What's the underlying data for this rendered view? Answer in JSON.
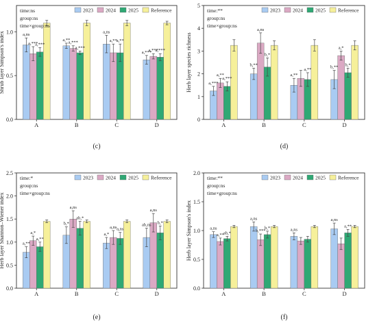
{
  "legend_labels": [
    "2023",
    "2024",
    "2025",
    "Reference"
  ],
  "colors": {
    "2023": "#a9cbf2",
    "2024": "#dba9c4",
    "2025": "#2fa874",
    "Reference": "#f6f09a",
    "axis": "#333333",
    "error": "#444444"
  },
  "chart_data": [
    {
      "type": "bar",
      "panel_label": "(c)",
      "ylabel": "Shrub layer Simpson's index",
      "categories": [
        "A",
        "B",
        "C",
        "D"
      ],
      "series": [
        {
          "name": "2023",
          "values": [
            0.85,
            0.84,
            0.86,
            0.68
          ],
          "errors": [
            0.08,
            0.03,
            0.1,
            0.05
          ]
        },
        {
          "name": "2024",
          "values": [
            0.75,
            0.81,
            0.76,
            0.72
          ],
          "errors": [
            0.08,
            0.03,
            0.1,
            0.03
          ]
        },
        {
          "name": "2025",
          "values": [
            0.77,
            0.76,
            0.76,
            0.71
          ],
          "errors": [
            0.05,
            0.02,
            0.1,
            0.04
          ]
        },
        {
          "name": "Reference",
          "values": [
            1.1,
            1.1,
            1.1,
            1.1
          ],
          "errors": [
            0.03,
            0.03,
            0.03,
            0.02
          ]
        }
      ],
      "annotations": [
        {
          "category": "A",
          "series": "2023",
          "text": "a,ns"
        },
        {
          "category": "A",
          "series": "2024",
          "text": "a,***"
        },
        {
          "category": "A",
          "series": "2025",
          "text": "a,***"
        },
        {
          "category": "B",
          "series": "2023",
          "text": "a,**"
        },
        {
          "category": "B",
          "series": "2024",
          "text": "a,***"
        },
        {
          "category": "B",
          "series": "2025",
          "text": "a,***"
        },
        {
          "category": "C",
          "series": "2023",
          "text": "a,ns"
        },
        {
          "category": "C",
          "series": "2024",
          "text": "a,**"
        },
        {
          "category": "C",
          "series": "2025",
          "text": "a,**"
        },
        {
          "category": "D",
          "series": "2023",
          "text": "a,***"
        },
        {
          "category": "D",
          "series": "2024",
          "text": "a,***"
        },
        {
          "category": "D",
          "series": "2025",
          "text": "a,***"
        }
      ],
      "stats": [
        "time:ns",
        "group:ns",
        "time×group:ns"
      ],
      "ylim": [
        0.0,
        1.3
      ],
      "yticks": [
        "0.0",
        "0.5",
        "1.0"
      ],
      "ytick_values": [
        0,
        0.5,
        1.0
      ],
      "legend": "top"
    },
    {
      "type": "bar",
      "panel_label": "(d)",
      "ylabel": "Herb layer species richness",
      "categories": [
        "A",
        "B",
        "C",
        "D"
      ],
      "series": [
        {
          "name": "2023",
          "values": [
            1.25,
            2.0,
            1.5,
            1.75
          ],
          "errors": [
            0.2,
            0.25,
            0.3,
            0.4
          ]
        },
        {
          "name": "2024",
          "values": [
            1.6,
            3.35,
            1.8,
            2.8
          ],
          "errors": [
            0.2,
            0.45,
            0.35,
            0.2
          ]
        },
        {
          "name": "2025",
          "values": [
            1.45,
            2.3,
            1.75,
            2.05
          ],
          "errors": [
            0.2,
            0.4,
            0.3,
            0.2
          ]
        },
        {
          "name": "Reference",
          "values": [
            3.25,
            3.25,
            3.25,
            3.25
          ],
          "errors": [
            0.25,
            0.2,
            0.25,
            0.2
          ]
        }
      ],
      "annotations": [
        {
          "category": "A",
          "series": "2023",
          "text": "a,***"
        },
        {
          "category": "A",
          "series": "2024",
          "text": "a,**"
        },
        {
          "category": "A",
          "series": "2025",
          "text": "a,***"
        },
        {
          "category": "B",
          "series": "2023",
          "text": "b,**"
        },
        {
          "category": "B",
          "series": "2024",
          "text": "a,ns"
        },
        {
          "category": "B",
          "series": "2025",
          "text": "b,*"
        },
        {
          "category": "C",
          "series": "2023",
          "text": "a,**"
        },
        {
          "category": "C",
          "series": "2025",
          "text": "a,**"
        },
        {
          "category": "D",
          "series": "2023",
          "text": "b,**"
        },
        {
          "category": "D",
          "series": "2024",
          "text": "a,*"
        },
        {
          "category": "D",
          "series": "2025",
          "text": "b,*"
        }
      ],
      "stats": [
        "time:**",
        "group:ns",
        "time×group:ns"
      ],
      "ylim": [
        0,
        5
      ],
      "yticks": [
        "0",
        "1",
        "2",
        "3",
        "4",
        "5"
      ],
      "ytick_values": [
        0,
        1,
        2,
        3,
        4,
        5
      ],
      "legend": "top"
    },
    {
      "type": "bar",
      "panel_label": "(e)",
      "ylabel": "Herb layer Shannon–Wiener index",
      "categories": [
        "A",
        "B",
        "C",
        "D"
      ],
      "series": [
        {
          "name": "2023",
          "values": [
            0.78,
            1.15,
            0.98,
            1.1
          ],
          "errors": [
            0.12,
            0.18,
            0.12,
            0.2
          ]
        },
        {
          "name": "2024",
          "values": [
            1.03,
            1.5,
            1.1,
            1.42
          ],
          "errors": [
            0.1,
            0.18,
            0.15,
            0.2
          ]
        },
        {
          "name": "2025",
          "values": [
            0.9,
            1.3,
            1.08,
            1.2
          ],
          "errors": [
            0.1,
            0.15,
            0.13,
            0.15
          ]
        },
        {
          "name": "Reference",
          "values": [
            1.45,
            1.45,
            1.45,
            1.45
          ],
          "errors": [
            0.03,
            0.03,
            0.03,
            0.03
          ]
        }
      ],
      "annotations": [
        {
          "category": "A",
          "series": "2023",
          "text": "a,**"
        },
        {
          "category": "A",
          "series": "2024",
          "text": "a,*"
        },
        {
          "category": "A",
          "series": "2025",
          "text": "a,**"
        },
        {
          "category": "B",
          "series": "2023",
          "text": "b,*"
        },
        {
          "category": "B",
          "series": "2024",
          "text": "a,ns"
        },
        {
          "category": "B",
          "series": "2025",
          "text": "ab,*"
        },
        {
          "category": "C",
          "series": "2023",
          "text": "a,*"
        },
        {
          "category": "C",
          "series": "2024",
          "text": "a,ns"
        },
        {
          "category": "C",
          "series": "2025",
          "text": "a,ns"
        },
        {
          "category": "D",
          "series": "2023",
          "text": "ab,ns"
        },
        {
          "category": "D",
          "series": "2024",
          "text": "a,ns"
        },
        {
          "category": "D",
          "series": "2025",
          "text": "b,*"
        }
      ],
      "stats": [
        "time:*",
        "group:ns",
        "time×group:ns"
      ],
      "ylim": [
        0.0,
        2.5
      ],
      "yticks": [
        "0.0",
        "0.5",
        "1.0",
        "1.5",
        "2.0",
        "2.5"
      ],
      "ytick_values": [
        0,
        0.5,
        1.0,
        1.5,
        2.0,
        2.5
      ],
      "legend": "top"
    },
    {
      "type": "bar",
      "panel_label": "(f)",
      "ylabel": "Herb layer Simpson's index",
      "categories": [
        "A",
        "B",
        "C",
        "D"
      ],
      "series": [
        {
          "name": "2023",
          "values": [
            0.93,
            1.07,
            0.9,
            1.03
          ],
          "errors": [
            0.05,
            0.08,
            0.06,
            0.1
          ]
        },
        {
          "name": "2024",
          "values": [
            0.81,
            0.84,
            0.82,
            0.77
          ],
          "errors": [
            0.06,
            0.1,
            0.06,
            0.1
          ]
        },
        {
          "name": "2025",
          "values": [
            0.86,
            0.93,
            0.85,
            0.96
          ],
          "errors": [
            0.04,
            0.06,
            0.05,
            0.06
          ]
        },
        {
          "name": "Reference",
          "values": [
            1.07,
            1.07,
            1.07,
            1.07
          ],
          "errors": [
            0.02,
            0.02,
            0.02,
            0.02
          ]
        }
      ],
      "annotations": [
        {
          "category": "A",
          "series": "2023",
          "text": "a,ns"
        },
        {
          "category": "A",
          "series": "2024",
          "text": "a,**"
        },
        {
          "category": "A",
          "series": "2025",
          "text": "ab,*"
        },
        {
          "category": "B",
          "series": "2023",
          "text": "a,ns"
        },
        {
          "category": "B",
          "series": "2024",
          "text": "b,***"
        },
        {
          "category": "B",
          "series": "2025",
          "text": "b,*"
        },
        {
          "category": "C",
          "series": "2023",
          "text": "a,ns"
        },
        {
          "category": "D",
          "series": "2023",
          "text": "a,ns"
        },
        {
          "category": "D",
          "series": "2025",
          "text": "a,**"
        }
      ],
      "stats": [
        "time:**",
        "group:ns",
        "time×group:ns"
      ],
      "ylim": [
        0.0,
        2.0
      ],
      "yticks": [
        "0.0",
        "0.5",
        "1.0",
        "1.5",
        "2.0"
      ],
      "ytick_values": [
        0,
        0.5,
        1.0,
        1.5,
        2.0
      ],
      "legend": "top"
    }
  ]
}
